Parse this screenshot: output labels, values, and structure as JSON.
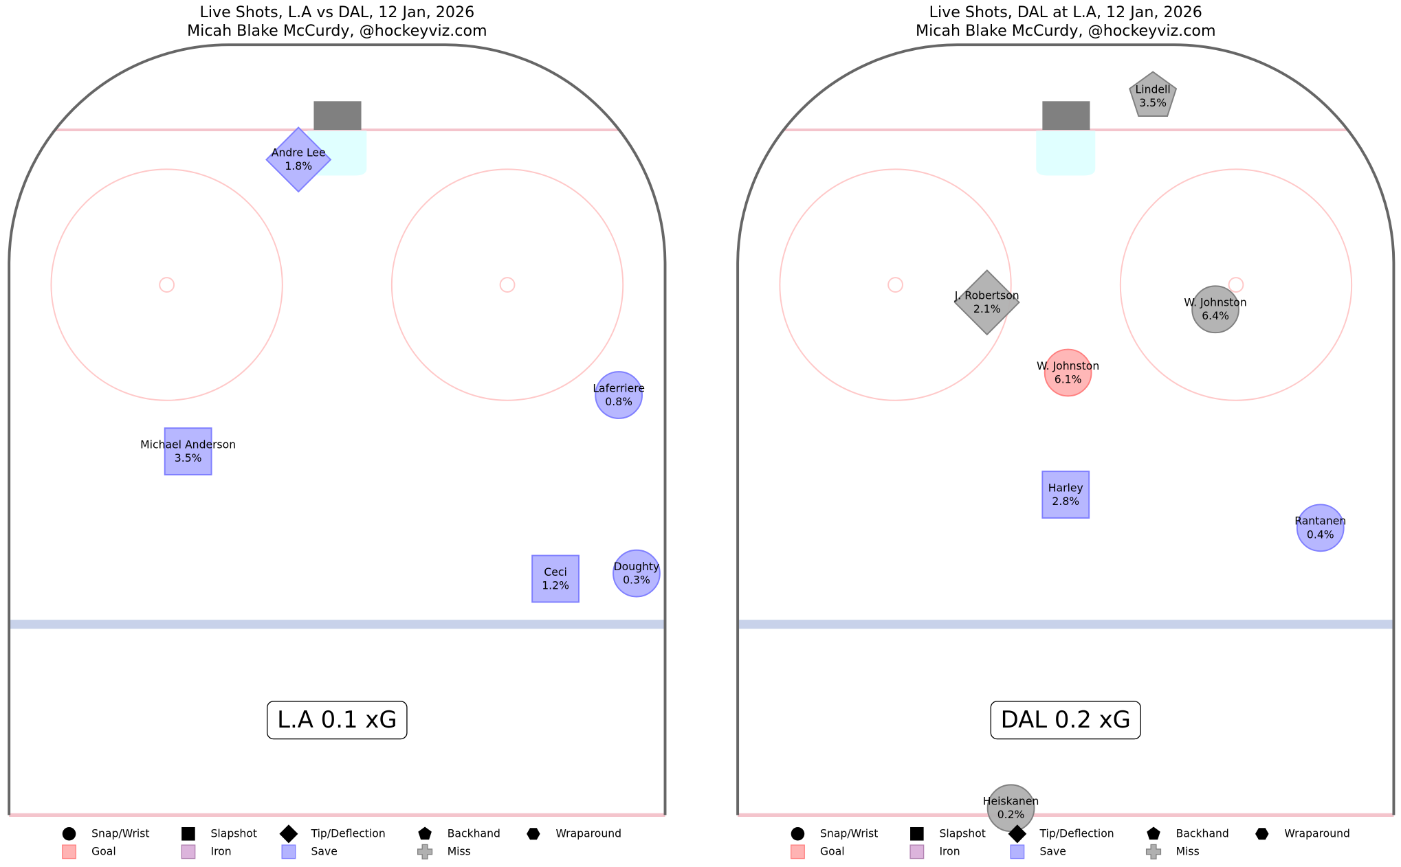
{
  "chart_data": [
    {
      "type": "scatter",
      "title": "Live Shots, L.A vs DAL, 12 Jan, 2026",
      "subtitle": "Micah Blake McCurdy, @hockeyviz.com",
      "summary": "L.A 0.1 xG",
      "xlim": [
        -42.5,
        42.5
      ],
      "ylim": [
        0,
        100
      ],
      "points": [
        {
          "label": "Andre Lee",
          "x": -5.0,
          "y": 84.9,
          "xg": 1.8,
          "xg_label": "1.8%",
          "shot_type": "Tip/Deflection",
          "result": "Save"
        },
        {
          "label": "Laferriere",
          "x": 36.5,
          "y": 54.4,
          "xg": 0.8,
          "xg_label": "0.8%",
          "shot_type": "Snap/Wrist",
          "result": "Save"
        },
        {
          "label": "Michael Anderson",
          "x": -19.3,
          "y": 47.1,
          "xg": 3.5,
          "xg_label": "3.5%",
          "shot_type": "Slapshot",
          "result": "Save"
        },
        {
          "label": "Ceci",
          "x": 28.3,
          "y": 30.6,
          "xg": 1.2,
          "xg_label": "1.2%",
          "shot_type": "Slapshot",
          "result": "Save"
        },
        {
          "label": "Doughty",
          "x": 38.8,
          "y": 31.3,
          "xg": 0.3,
          "xg_label": "0.3%",
          "shot_type": "Snap/Wrist",
          "result": "Save"
        }
      ],
      "legend": {
        "shot_types": [
          "Snap/Wrist",
          "Slapshot",
          "Tip/Deflection",
          "Backhand",
          "Wraparound"
        ],
        "results": [
          {
            "label": "Goal",
            "color": "#ffb3b3"
          },
          {
            "label": "Iron",
            "color": "#dcb4dc"
          },
          {
            "label": "Save",
            "color": "#b3b3ff"
          },
          {
            "label": "Miss",
            "color": "#b0b0b0"
          }
        ]
      }
    },
    {
      "type": "scatter",
      "title": "Live Shots, DAL at L.A, 12 Jan, 2026",
      "subtitle": "Micah Blake McCurdy, @hockeyviz.com",
      "summary": "DAL 0.2 xG",
      "xlim": [
        -42.5,
        42.5
      ],
      "ylim": [
        0,
        100
      ],
      "points": [
        {
          "label": "Lindell",
          "x": 11.3,
          "y": 93.1,
          "xg": 3.5,
          "xg_label": "3.5%",
          "shot_type": "Backhand",
          "result": "Miss"
        },
        {
          "label": "J. Robertson",
          "x": -10.2,
          "y": 66.4,
          "xg": 2.1,
          "xg_label": "2.1%",
          "shot_type": "Tip/Deflection",
          "result": "Miss"
        },
        {
          "label": "W. Johnston",
          "x": 19.4,
          "y": 65.5,
          "xg": 6.4,
          "xg_label": "6.4%",
          "shot_type": "Snap/Wrist",
          "result": "Miss"
        },
        {
          "label": "W. Johnston",
          "x": 0.3,
          "y": 57.3,
          "xg": 6.1,
          "xg_label": "6.1%",
          "shot_type": "Snap/Wrist",
          "result": "Goal"
        },
        {
          "label": "Harley",
          "x": 0.0,
          "y": 41.5,
          "xg": 2.8,
          "xg_label": "2.8%",
          "shot_type": "Slapshot",
          "result": "Save"
        },
        {
          "label": "Rantanen",
          "x": 33.0,
          "y": 37.2,
          "xg": 0.4,
          "xg_label": "0.4%",
          "shot_type": "Snap/Wrist",
          "result": "Save"
        },
        {
          "label": "Heiskanen",
          "x": -7.1,
          "y": 0.9,
          "xg": 0.2,
          "xg_label": "0.2%",
          "shot_type": "Snap/Wrist",
          "result": "Miss"
        }
      ],
      "legend": {
        "shot_types": [
          "Snap/Wrist",
          "Slapshot",
          "Tip/Deflection",
          "Backhand",
          "Wraparound"
        ],
        "results": [
          {
            "label": "Goal",
            "color": "#ffb3b3"
          },
          {
            "label": "Iron",
            "color": "#dcb4dc"
          },
          {
            "label": "Save",
            "color": "#b3b3ff"
          },
          {
            "label": "Miss",
            "color": "#b0b0b0"
          }
        ]
      }
    }
  ]
}
